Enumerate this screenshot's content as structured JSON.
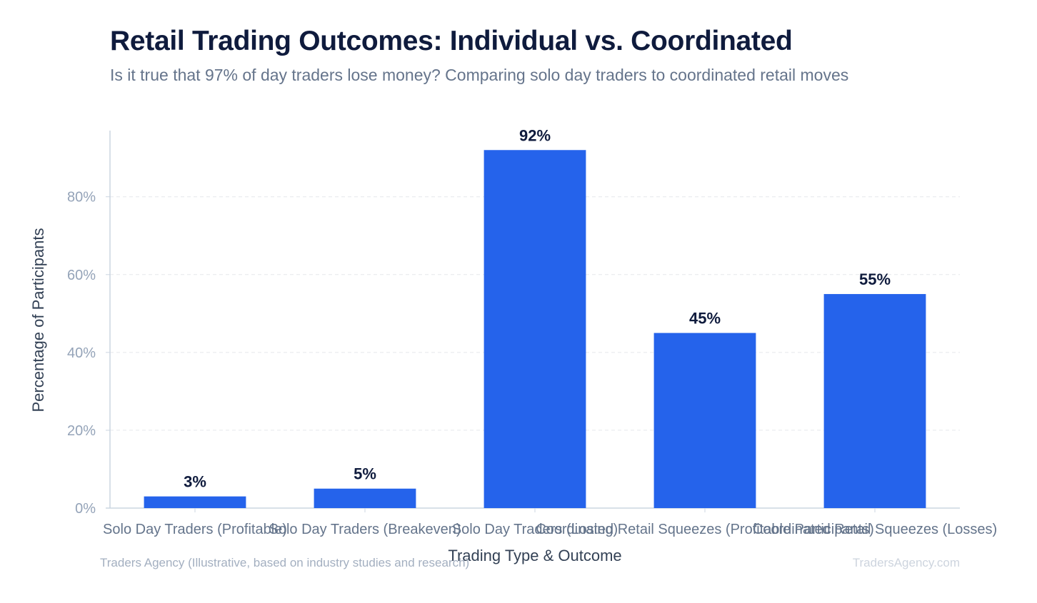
{
  "chart_data": {
    "type": "bar",
    "title": "Retail Trading Outcomes: Individual vs. Coordinated",
    "subtitle": "Is it true that 97% of day traders lose money? Comparing solo day traders to coordinated retail moves",
    "xlabel": "Trading Type & Outcome",
    "ylabel": "Percentage of Participants",
    "categories": [
      "Solo Day Traders (Profitable)",
      "Solo Day Traders (Breakeven)",
      "Solo Day Traders (Losing)",
      "Coordinated Retail Squeezes (Profitable Participants)",
      "Coordinated Retail Squeezes (Losses)"
    ],
    "values": [
      3,
      5,
      92,
      45,
      55
    ],
    "value_labels": [
      "3%",
      "5%",
      "92%",
      "45%",
      "55%"
    ],
    "ylim": [
      0,
      97
    ],
    "yticks": [
      0,
      20,
      40,
      60,
      80
    ],
    "ytick_labels": [
      "0%",
      "20%",
      "40%",
      "60%",
      "80%"
    ],
    "grid": true,
    "legend": "none",
    "colors": {
      "bar": "#2563eb",
      "value_label": "#0f1b3d",
      "tick_label": "#94a3b8",
      "category_label": "#64748b",
      "axis_title": "#334155",
      "gridline": "#e5e7eb",
      "axis": "#cbd5e1"
    }
  },
  "footer": {
    "source": "Traders Agency (Illustrative, based on industry studies and research)",
    "brand": "TradersAgency.com"
  }
}
